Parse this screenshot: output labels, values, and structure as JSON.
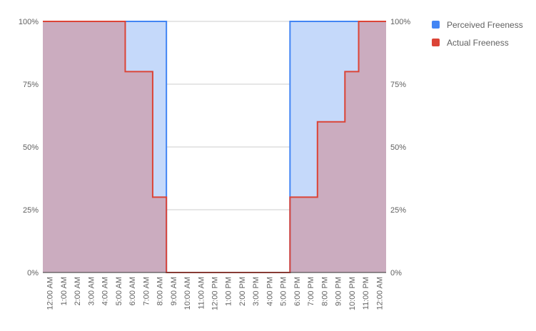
{
  "chart_data": {
    "type": "area",
    "stepped": true,
    "title": "",
    "xlabel": "",
    "ylabel": "",
    "categories": [
      "12:00 AM",
      "1:00 AM",
      "2:00 AM",
      "3:00 AM",
      "4:00 AM",
      "5:00 AM",
      "6:00 AM",
      "7:00 AM",
      "8:00 AM",
      "9:00 AM",
      "10:00 AM",
      "11:00 AM",
      "12:00 PM",
      "1:00 PM",
      "2:00 PM",
      "3:00 PM",
      "4:00 PM",
      "5:00 PM",
      "6:00 PM",
      "7:00 PM",
      "8:00 PM",
      "9:00 PM",
      "10:00 PM",
      "11:00 PM",
      "12:00 AM"
    ],
    "series": [
      {
        "name": "Perceived Freeness",
        "color": "#4285f4",
        "fill": "#c5d9fa",
        "values": [
          100,
          100,
          100,
          100,
          100,
          100,
          100,
          100,
          100,
          0,
          0,
          0,
          0,
          0,
          0,
          0,
          0,
          0,
          100,
          100,
          100,
          100,
          100,
          100,
          100
        ]
      },
      {
        "name": "Actual Freeness",
        "color": "#db4437",
        "fill": "rgba(219,68,55,0.3)",
        "values": [
          100,
          100,
          100,
          100,
          100,
          100,
          80,
          80,
          30,
          0,
          0,
          0,
          0,
          0,
          0,
          0,
          0,
          0,
          30,
          30,
          60,
          60,
          80,
          100,
          100
        ]
      }
    ],
    "ylim": [
      0,
      100
    ],
    "yticks": [
      "0%",
      "25%",
      "50%",
      "75%",
      "100%"
    ],
    "grid": true,
    "legend_position": "right"
  }
}
